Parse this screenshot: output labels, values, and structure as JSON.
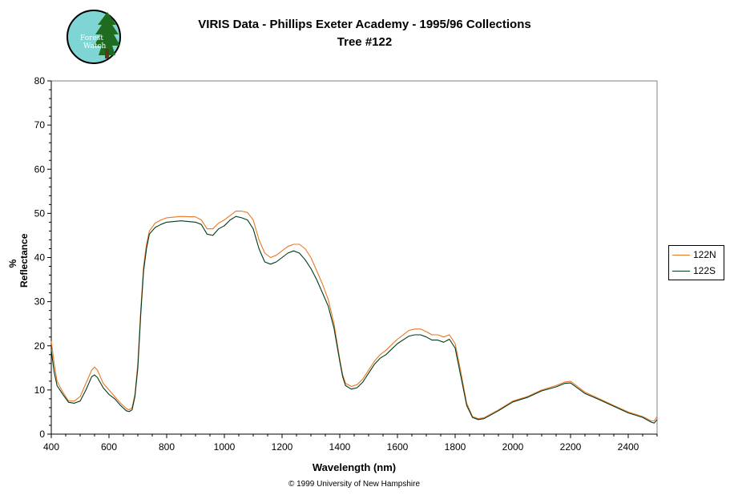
{
  "header": {
    "title_line1": "VIRIS Data - Phillips Exeter Academy - 1995/96 Collections",
    "title_line2": "Tree #122"
  },
  "logo": {
    "text_line1": "Forest",
    "text_line2": "Watch",
    "icon": "tree-icon",
    "color": "#7fd4d4"
  },
  "footer": {
    "copyright": "© 1999 University of New Hampshire"
  },
  "chart_data": {
    "type": "line",
    "title": "VIRIS Data - Phillips Exeter Academy - 1995/96 Collections",
    "subtitle": "Tree #122",
    "xlabel": "Wavelength (nm)",
    "ylabel": "% Reflectance",
    "xlim": [
      400,
      2500
    ],
    "ylim": [
      0,
      80
    ],
    "xticks": [
      400,
      600,
      800,
      1000,
      1200,
      1400,
      1600,
      1800,
      2000,
      2200,
      2400
    ],
    "yticks": [
      0,
      10,
      20,
      30,
      40,
      50,
      60,
      70,
      80
    ],
    "grid": false,
    "legend": "right",
    "series": [
      {
        "name": "122N",
        "color": "#e87722",
        "x": [
          400,
          410,
          420,
          440,
          460,
          480,
          500,
          520,
          540,
          550,
          560,
          580,
          600,
          620,
          640,
          660,
          670,
          680,
          690,
          700,
          710,
          720,
          730,
          740,
          760,
          780,
          800,
          850,
          900,
          920,
          940,
          960,
          980,
          1000,
          1020,
          1040,
          1060,
          1080,
          1100,
          1120,
          1140,
          1160,
          1180,
          1200,
          1220,
          1240,
          1260,
          1280,
          1300,
          1320,
          1340,
          1360,
          1380,
          1400,
          1410,
          1420,
          1440,
          1460,
          1480,
          1500,
          1520,
          1540,
          1560,
          1600,
          1640,
          1660,
          1680,
          1700,
          1720,
          1740,
          1760,
          1780,
          1800,
          1820,
          1840,
          1860,
          1880,
          1900,
          1950,
          2000,
          2050,
          2100,
          2150,
          2180,
          2200,
          2250,
          2300,
          2350,
          2400,
          2450,
          2480,
          2490,
          2500
        ],
        "y": [
          21,
          16,
          12,
          9.5,
          7.5,
          7.5,
          8.5,
          11.5,
          14.5,
          15.2,
          14.5,
          11.5,
          10,
          8.5,
          7,
          5.8,
          5.5,
          6,
          9,
          16,
          28,
          38,
          43,
          46,
          47.8,
          48.5,
          49,
          49.3,
          49.2,
          48.5,
          46.5,
          46.5,
          47.8,
          48.5,
          49.5,
          50.5,
          50.5,
          50.2,
          48.5,
          44,
          41,
          40,
          40.5,
          41.5,
          42.5,
          43,
          43,
          42,
          40,
          37,
          34,
          30.5,
          25,
          17,
          13.5,
          11.5,
          10.8,
          11.2,
          12.5,
          14.5,
          16.5,
          18,
          19,
          21.5,
          23.5,
          23.8,
          23.8,
          23.2,
          22.5,
          22.5,
          22,
          22.5,
          20.5,
          14,
          7,
          4,
          3.5,
          3.7,
          5.5,
          7.5,
          8.5,
          10,
          11,
          11.8,
          12,
          9.5,
          8,
          6.5,
          5,
          4,
          3,
          3,
          4
        ]
      },
      {
        "name": "122S",
        "color": "#003a1a",
        "x": [
          400,
          410,
          420,
          440,
          460,
          480,
          500,
          520,
          540,
          550,
          560,
          580,
          600,
          620,
          640,
          660,
          670,
          680,
          690,
          700,
          710,
          720,
          730,
          740,
          760,
          780,
          800,
          850,
          900,
          920,
          940,
          960,
          980,
          1000,
          1020,
          1040,
          1060,
          1080,
          1100,
          1120,
          1140,
          1160,
          1180,
          1200,
          1220,
          1240,
          1260,
          1280,
          1300,
          1320,
          1340,
          1360,
          1380,
          1400,
          1410,
          1420,
          1440,
          1460,
          1480,
          1500,
          1520,
          1540,
          1560,
          1600,
          1640,
          1660,
          1680,
          1700,
          1720,
          1740,
          1760,
          1780,
          1800,
          1820,
          1840,
          1860,
          1880,
          1900,
          1950,
          2000,
          2050,
          2100,
          2150,
          2180,
          2200,
          2250,
          2300,
          2350,
          2400,
          2450,
          2480,
          2490,
          2500
        ],
        "y": [
          19,
          14,
          11,
          9,
          7.2,
          7,
          7.5,
          10,
          13,
          13.4,
          12.8,
          10.5,
          9,
          8,
          6.5,
          5.3,
          5.1,
          5.5,
          8.5,
          15,
          27,
          37,
          42,
          45.3,
          46.8,
          47.5,
          48,
          48.3,
          48,
          47.5,
          45.3,
          45,
          46.5,
          47.2,
          48.5,
          49.3,
          49,
          48.5,
          46.5,
          42,
          39,
          38.5,
          39,
          40,
          41,
          41.5,
          41,
          39.5,
          37.5,
          35,
          32,
          29,
          24,
          16.5,
          13,
          11,
          10.2,
          10.5,
          11.8,
          13.8,
          15.8,
          17.2,
          18,
          20.5,
          22.2,
          22.5,
          22.5,
          22,
          21.3,
          21.3,
          20.8,
          21.5,
          19.5,
          13,
          6.5,
          3.8,
          3.3,
          3.5,
          5.3,
          7.3,
          8.3,
          9.8,
          10.7,
          11.5,
          11.6,
          9.2,
          7.8,
          6.3,
          4.8,
          3.8,
          2.7,
          2.5,
          3.3
        ]
      }
    ]
  }
}
